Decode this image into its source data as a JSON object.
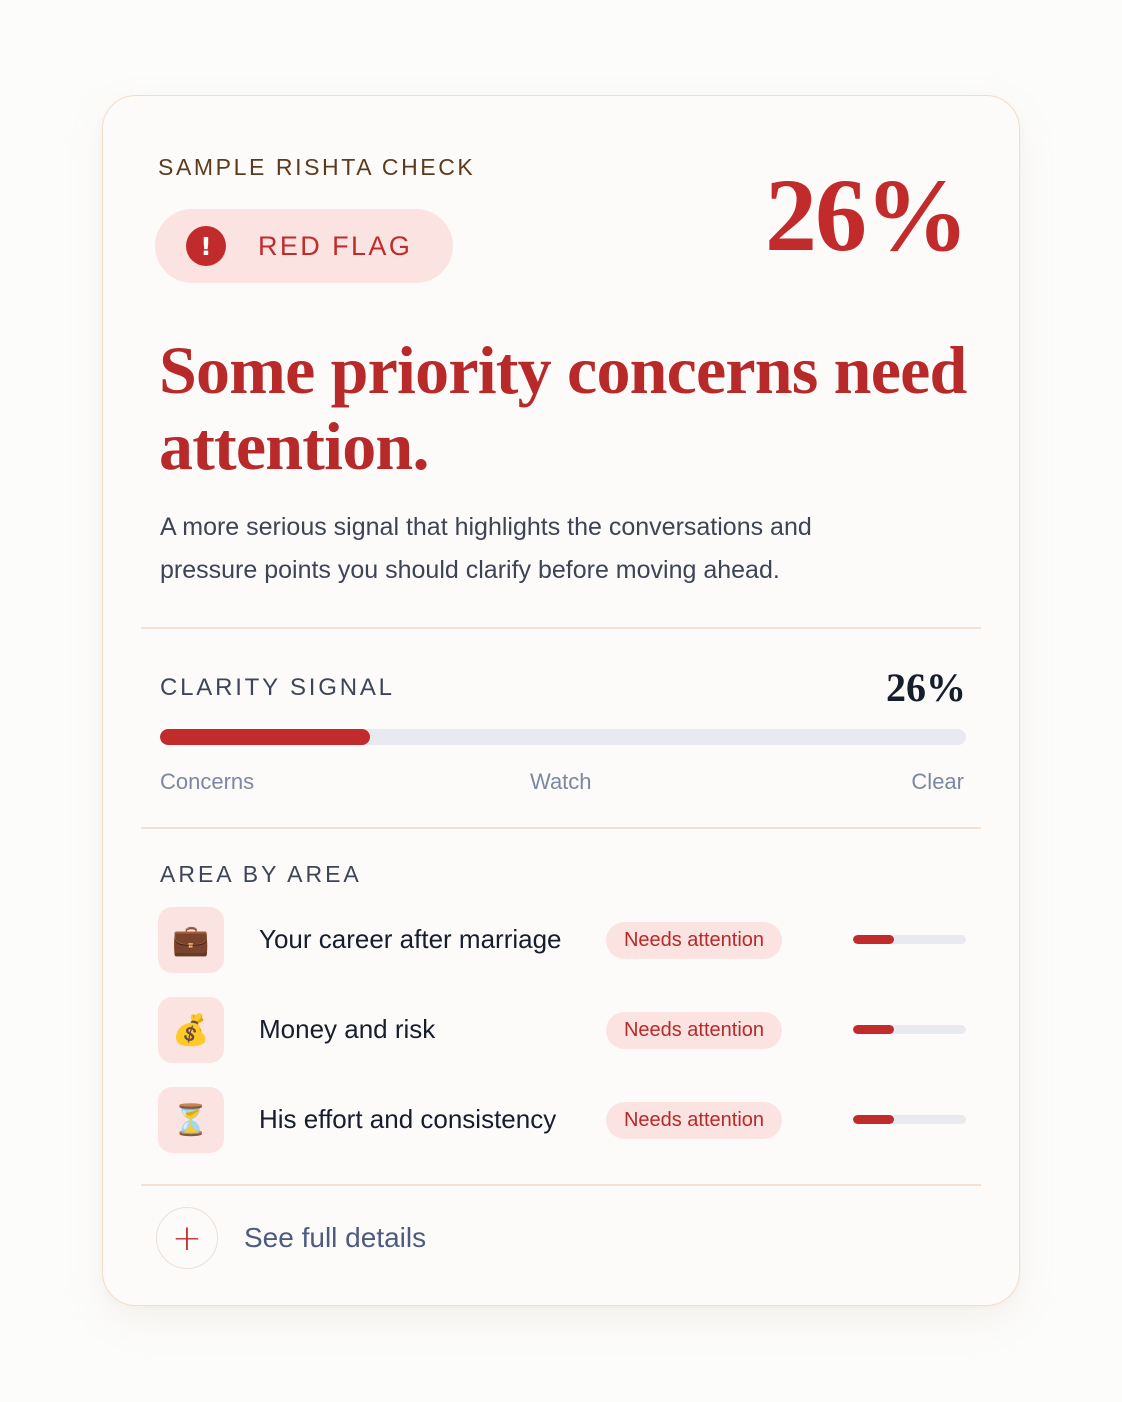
{
  "card": {
    "eyebrow": "SAMPLE  RISHTA CHECK",
    "badge": {
      "icon": "alert-circle-icon",
      "icon_glyph": "!",
      "label": "RED FLAG"
    },
    "score": "26%",
    "headline": "Some priority concerns need attention.",
    "description": "A more serious signal that highlights the conversations and pressure points you should clarify before moving ahead."
  },
  "clarity": {
    "label": "CLARITY SIGNAL",
    "value_text": "26%",
    "value": 0.26,
    "scale": [
      "Concerns",
      "Watch",
      "Clear"
    ]
  },
  "areas": {
    "title": "AREA BY AREA",
    "items": [
      {
        "icon": "briefcase-icon",
        "emoji": "💼",
        "label": "Your career after marriage",
        "status": "Needs attention",
        "level": 0.36
      },
      {
        "icon": "money-bag-icon",
        "emoji": "💰",
        "label": "Money and risk",
        "status": "Needs attention",
        "level": 0.36
      },
      {
        "icon": "hourglass-icon",
        "emoji": "⏳",
        "label": "His effort and consistency",
        "status": "Needs attention",
        "level": 0.36
      }
    ]
  },
  "footer": {
    "icon": "plus-icon",
    "icon_glyph": "+",
    "label": "See full details"
  },
  "colors": {
    "accent": "#c22b2b",
    "badge_bg": "#fbe3e1",
    "track": "#e9eaf0",
    "card_border": "#f5dcc6"
  }
}
